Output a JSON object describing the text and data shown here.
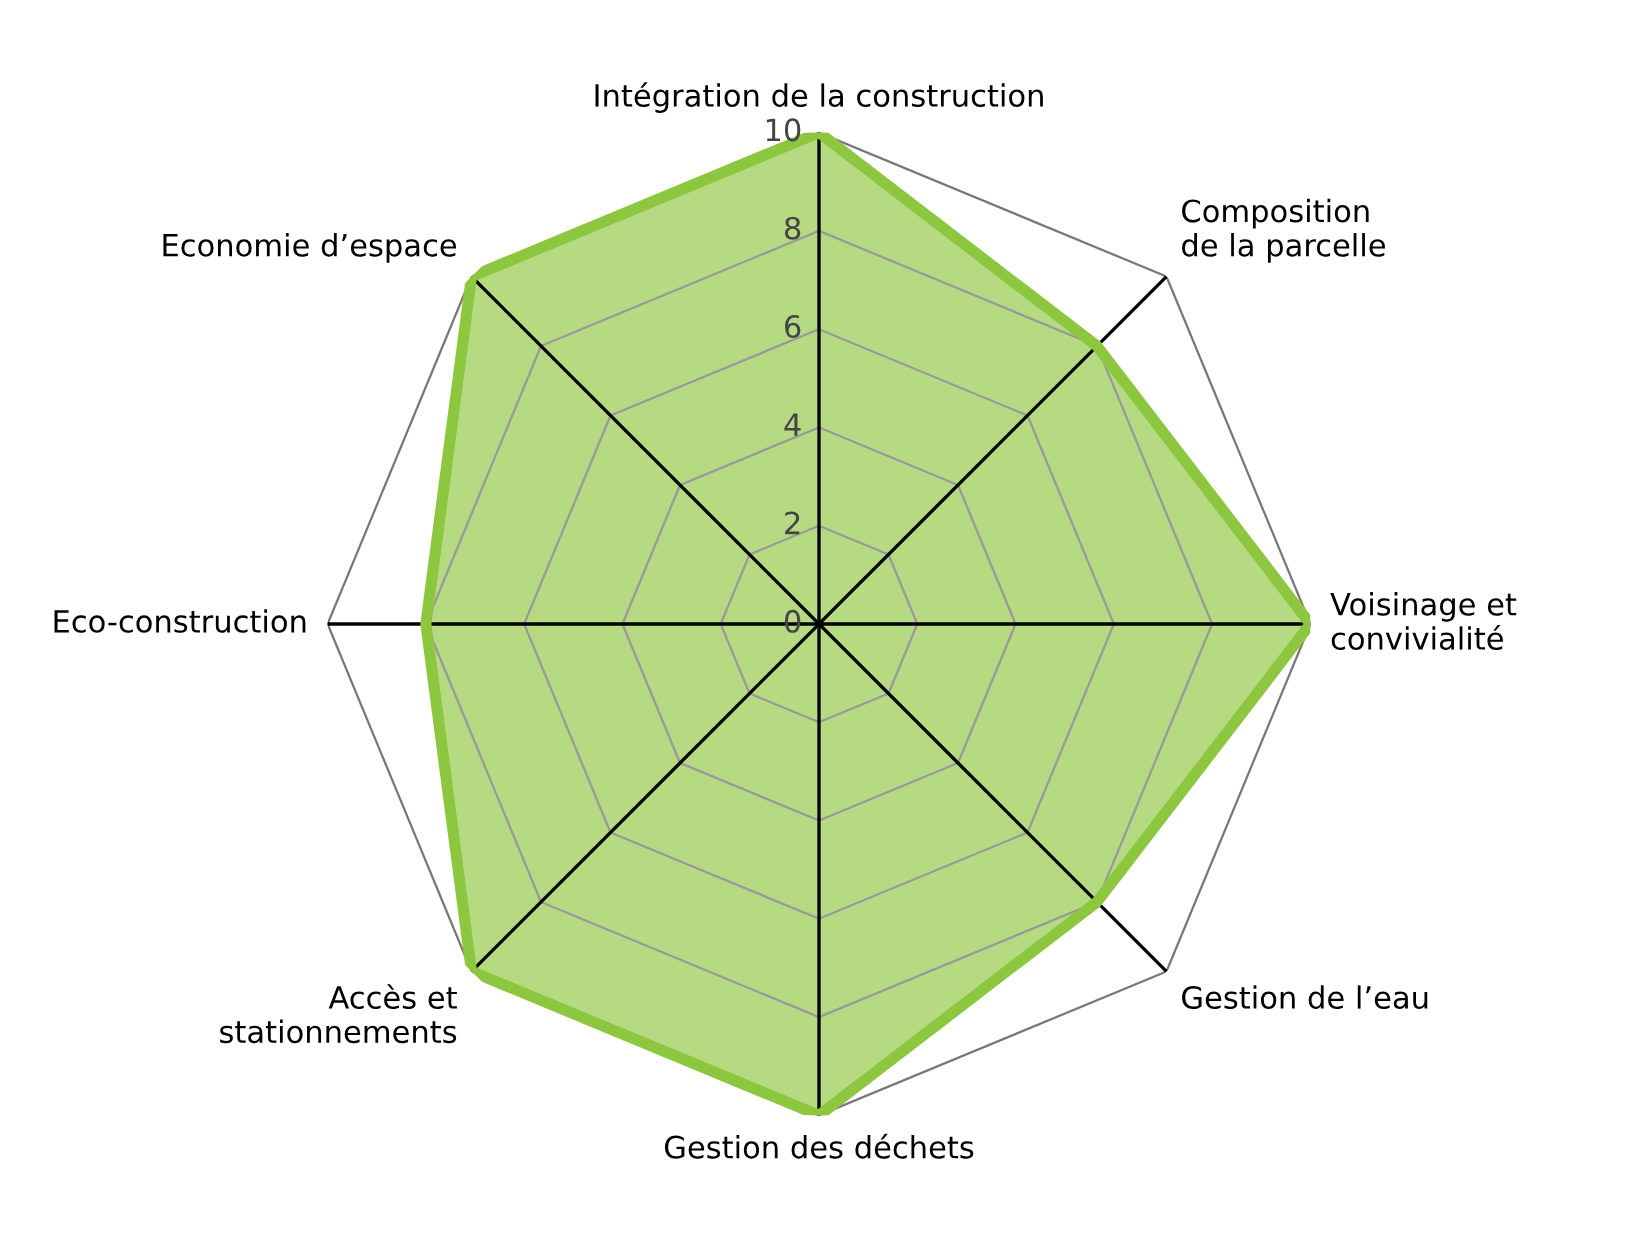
{
  "chart_data": {
    "type": "radar",
    "categories": [
      "Intégration de la construction",
      "Composition\nde la parcelle",
      "Voisinage et\nconvivialité",
      "Gestion de l’eau",
      "Gestion des déchets",
      "Accès et\nstationnements",
      "Eco-construction",
      "Economie d’espace"
    ],
    "series": [
      {
        "color": "#8dc63f",
        "values": [
          10,
          8,
          10,
          8,
          10,
          10,
          8,
          10
        ]
      }
    ],
    "ylim": [
      0,
      10
    ],
    "yticks": [
      0,
      2,
      4,
      6,
      8,
      10
    ],
    "grid": true
  }
}
